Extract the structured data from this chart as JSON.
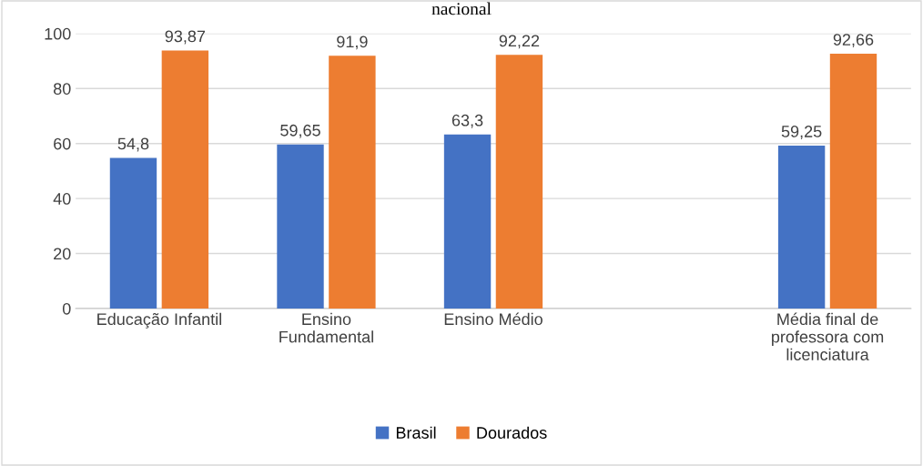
{
  "chart_data": {
    "type": "bar",
    "title": "nacional",
    "categories": [
      "Educação Infantil",
      "Ensino\nFundamental",
      "Ensino Médio",
      null,
      "Média final de\nprofessora com\nlicenciatura"
    ],
    "series": [
      {
        "name": "Brasil",
        "color": "#4472c4",
        "values": [
          54.8,
          59.65,
          63.3,
          null,
          59.25
        ],
        "value_labels": [
          "54,8",
          "59,65",
          "63,3",
          null,
          "59,25"
        ]
      },
      {
        "name": "Dourados",
        "color": "#ed7d31",
        "values": [
          93.87,
          91.9,
          92.22,
          null,
          92.66
        ],
        "value_labels": [
          "93,87",
          "91,9",
          "92,22",
          null,
          "92,66"
        ]
      }
    ],
    "ylim": [
      0,
      100
    ],
    "yticks": [
      0,
      20,
      40,
      60,
      80,
      100
    ],
    "grid": "y",
    "legend": "bottom"
  }
}
